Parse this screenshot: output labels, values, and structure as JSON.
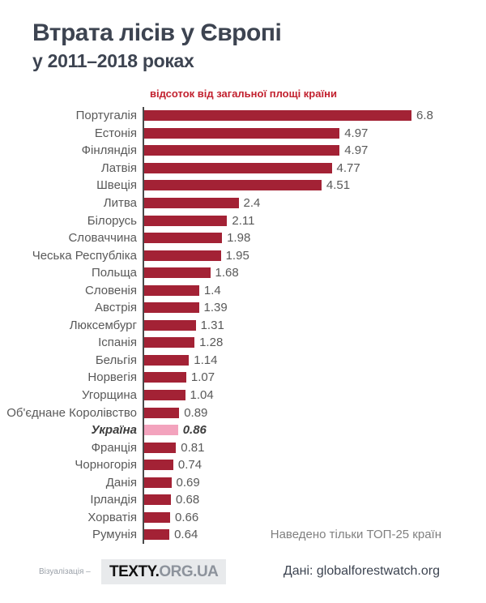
{
  "header": {
    "title": "Втрата лісів у Європі",
    "subtitle": "у 2011–2018 роках"
  },
  "chart_data": {
    "type": "bar",
    "orientation": "horizontal",
    "caption": "відсоток від загальної площі країни",
    "categories": [
      "Португалія",
      "Естонія",
      "Фінляндія",
      "Латвія",
      "Швеція",
      "Литва",
      "Білорусь",
      "Словаччина",
      "Чеська Республіка",
      "Польща",
      "Словенія",
      "Австрія",
      "Люксембург",
      "Іспанія",
      "Бельгія",
      "Норвегія",
      "Угорщина",
      "Об'єднане Королівство",
      "Україна",
      "Франція",
      "Чорногорія",
      "Данія",
      "Ірландія",
      "Хорватія",
      "Румунія"
    ],
    "values": [
      6.8,
      4.97,
      4.97,
      4.77,
      4.51,
      2.4,
      2.11,
      1.98,
      1.95,
      1.68,
      1.4,
      1.39,
      1.31,
      1.28,
      1.14,
      1.07,
      1.04,
      0.89,
      0.86,
      0.81,
      0.74,
      0.69,
      0.68,
      0.66,
      0.64
    ],
    "highlight_category": "Україна",
    "xlim": [
      0,
      6.8
    ],
    "grid": false,
    "legend": "none",
    "note": "Наведено тільки ТОП-25 країн",
    "colors": {
      "bar": "#a32235",
      "highlight_bar": "#f3a3bd",
      "axis": "#4a4a4a",
      "label": "#595959",
      "caption": "#c2212f"
    }
  },
  "footer": {
    "viz_label": "Візуалізація –",
    "logo_primary": "TEXTY.",
    "logo_secondary": "ORG.UA",
    "source": "Дані: globalforestwatch.org"
  }
}
